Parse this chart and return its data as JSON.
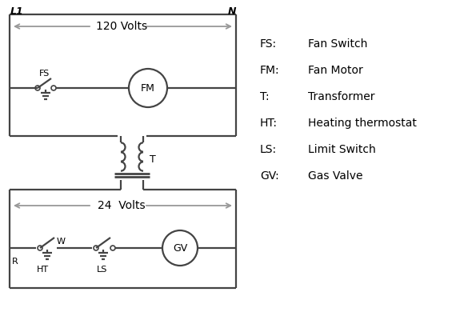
{
  "bg_color": "#ffffff",
  "line_color": "#444444",
  "arrow_color": "#999999",
  "text_color": "#000000",
  "legend": [
    [
      "FS:  ",
      "Fan Switch"
    ],
    [
      "FM: ",
      "Fan Motor"
    ],
    [
      "T:    ",
      "Transformer"
    ],
    [
      "HT:  ",
      "Heating thermostat"
    ],
    [
      "LS:  ",
      "Limit Switch"
    ],
    [
      "GV:  ",
      "Gas Valve"
    ]
  ],
  "L1_label": "L1",
  "N_label": "N",
  "volts_120": "120 Volts",
  "volts_24": "24  Volts",
  "T_label": "T",
  "R_label": "R",
  "W_label": "W",
  "FS_label": "FS",
  "FM_label": "FM",
  "HT_label": "HT",
  "LS_label": "LS",
  "GV_label": "GV"
}
